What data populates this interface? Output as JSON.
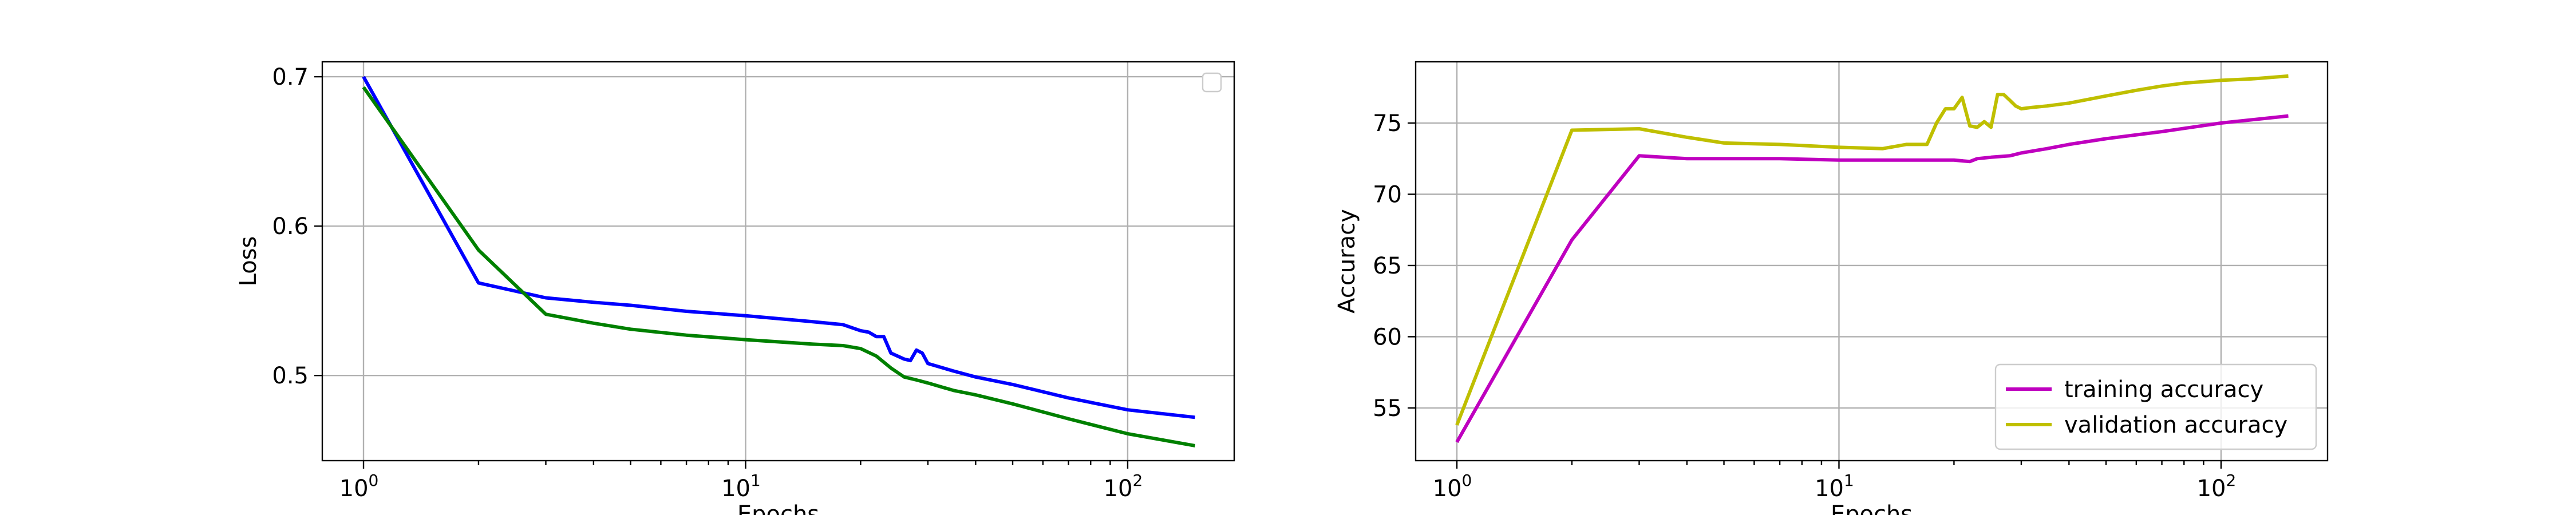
{
  "chart_data": [
    {
      "type": "line",
      "xscale": "log",
      "xlabel": "Epochs",
      "ylabel": "Loss",
      "xlim": [
        0.78,
        190
      ],
      "ylim": [
        0.443,
        0.71
      ],
      "grid": true,
      "xticks": [
        1,
        10,
        100
      ],
      "xtick_labels": [
        {
          "base": "10",
          "exp": "0"
        },
        {
          "base": "10",
          "exp": "1"
        },
        {
          "base": "10",
          "exp": "2"
        }
      ],
      "yticks": [
        0.5,
        0.6,
        0.7
      ],
      "ytick_labels": [
        "0.5",
        "0.6",
        "0.7"
      ],
      "legend": {
        "location": "upper right",
        "entries": []
      },
      "series": [
        {
          "color": "#0000ff",
          "x": [
            1,
            2,
            3,
            4,
            5,
            7,
            10,
            15,
            18,
            20,
            21,
            22,
            23,
            24,
            26,
            27,
            28,
            29,
            30,
            35,
            40,
            50,
            70,
            100,
            150
          ],
          "y": [
            0.7,
            0.562,
            0.552,
            0.549,
            0.547,
            0.543,
            0.54,
            0.536,
            0.534,
            0.53,
            0.529,
            0.526,
            0.526,
            0.515,
            0.511,
            0.51,
            0.517,
            0.515,
            0.508,
            0.503,
            0.499,
            0.494,
            0.485,
            0.477,
            0.472
          ]
        },
        {
          "color": "#008000",
          "x": [
            1,
            2,
            3,
            4,
            5,
            7,
            10,
            15,
            18,
            20,
            22,
            24,
            26,
            28,
            30,
            35,
            40,
            50,
            70,
            100,
            150
          ],
          "y": [
            0.693,
            0.584,
            0.541,
            0.535,
            0.531,
            0.527,
            0.524,
            0.521,
            0.52,
            0.518,
            0.513,
            0.505,
            0.499,
            0.497,
            0.495,
            0.49,
            0.487,
            0.481,
            0.471,
            0.461,
            0.453
          ]
        }
      ]
    },
    {
      "type": "line",
      "xscale": "log",
      "xlabel": "Epochs",
      "ylabel": "Accuracy",
      "xlim": [
        0.78,
        190
      ],
      "ylim": [
        51.3,
        79.3
      ],
      "grid": true,
      "xticks": [
        1,
        10,
        100
      ],
      "xtick_labels": [
        {
          "base": "10",
          "exp": "0"
        },
        {
          "base": "10",
          "exp": "1"
        },
        {
          "base": "10",
          "exp": "2"
        }
      ],
      "yticks": [
        55,
        60,
        65,
        70,
        75
      ],
      "ytick_labels": [
        "55",
        "60",
        "65",
        "70",
        "75"
      ],
      "legend": {
        "location": "lower right",
        "entries": [
          "training accuracy",
          "validation accuracy"
        ]
      },
      "series": [
        {
          "name": "training accuracy",
          "color": "#bf00bf",
          "x": [
            1,
            2,
            3,
            4,
            5,
            7,
            10,
            15,
            18,
            20,
            22,
            23,
            25,
            28,
            30,
            35,
            40,
            50,
            70,
            100,
            150
          ],
          "y": [
            52.6,
            66.8,
            72.7,
            72.5,
            72.5,
            72.5,
            72.4,
            72.4,
            72.4,
            72.4,
            72.3,
            72.5,
            72.6,
            72.7,
            72.9,
            73.2,
            73.5,
            73.9,
            74.4,
            75.0,
            75.5
          ]
        },
        {
          "name": "validation accuracy",
          "color": "#bfbf00",
          "x": [
            1,
            2,
            3,
            4,
            5,
            7,
            10,
            13,
            15,
            17,
            18,
            19,
            20,
            21,
            22,
            23,
            24,
            25,
            26,
            27,
            28,
            29,
            30,
            32,
            35,
            40,
            50,
            60,
            70,
            80,
            100,
            120,
            150
          ],
          "y": [
            53.8,
            74.5,
            74.6,
            74.0,
            73.6,
            73.5,
            73.3,
            73.2,
            73.5,
            73.5,
            75.0,
            76.0,
            76.0,
            76.8,
            74.8,
            74.7,
            75.1,
            74.7,
            77.0,
            77.0,
            76.6,
            76.2,
            76.0,
            76.1,
            76.2,
            76.4,
            76.9,
            77.3,
            77.6,
            77.8,
            78.0,
            78.1,
            78.3
          ]
        }
      ]
    }
  ]
}
